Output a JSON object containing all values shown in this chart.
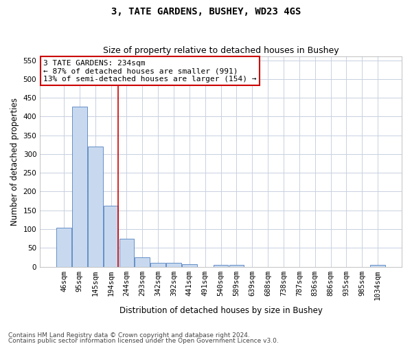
{
  "title": "3, TATE GARDENS, BUSHEY, WD23 4GS",
  "subtitle": "Size of property relative to detached houses in Bushey",
  "xlabel": "Distribution of detached houses by size in Bushey",
  "ylabel": "Number of detached properties",
  "footer_line1": "Contains HM Land Registry data © Crown copyright and database right 2024.",
  "footer_line2": "Contains public sector information licensed under the Open Government Licence v3.0.",
  "bar_labels": [
    "46sqm",
    "95sqm",
    "145sqm",
    "194sqm",
    "244sqm",
    "293sqm",
    "342sqm",
    "392sqm",
    "441sqm",
    "491sqm",
    "540sqm",
    "589sqm",
    "639sqm",
    "688sqm",
    "738sqm",
    "787sqm",
    "836sqm",
    "886sqm",
    "935sqm",
    "985sqm",
    "1034sqm"
  ],
  "bar_values": [
    103,
    427,
    320,
    163,
    75,
    25,
    11,
    11,
    7,
    0,
    5,
    5,
    0,
    0,
    0,
    0,
    0,
    0,
    0,
    0,
    4
  ],
  "bar_color": "#c8d9ef",
  "bar_edge_color": "#5080c0",
  "grid_color": "#c8d0e0",
  "annotation_text": "3 TATE GARDENS: 234sqm\n← 87% of detached houses are smaller (991)\n13% of semi-detached houses are larger (154) →",
  "annotation_box_color": "#ffffff",
  "annotation_box_edge_color": "#cc0000",
  "vline_color": "#cc0000",
  "vline_x": 3.47,
  "ylim": [
    0,
    560
  ],
  "yticks": [
    0,
    50,
    100,
    150,
    200,
    250,
    300,
    350,
    400,
    450,
    500,
    550
  ],
  "title_fontsize": 10,
  "subtitle_fontsize": 9,
  "xlabel_fontsize": 8.5,
  "ylabel_fontsize": 8.5,
  "tick_fontsize": 7.5,
  "annotation_fontsize": 8,
  "footer_fontsize": 6.5
}
